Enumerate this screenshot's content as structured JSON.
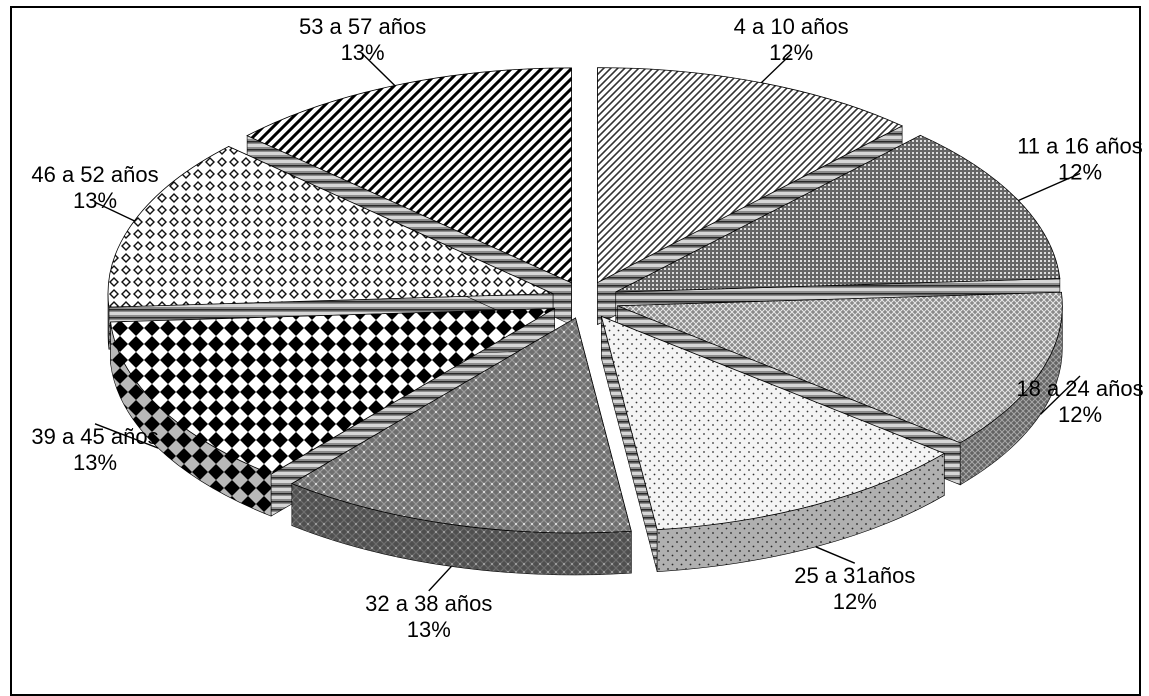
{
  "chart_data": {
    "type": "pie",
    "style": "exploded-3d",
    "title": "",
    "categories": [
      "4 a 10 años",
      "11 a 16 años",
      "18 a 24 años",
      "25 a 31años",
      "32 a 38 años",
      "39 a 45 años",
      "46 a 52 años",
      "53 a 57 años"
    ],
    "values": [
      12,
      12,
      12,
      12,
      13,
      13,
      13,
      13
    ],
    "value_labels": [
      "12%",
      "12%",
      "12%",
      "12%",
      "13%",
      "13%",
      "13%",
      "13%"
    ],
    "legend": "none",
    "grid": false
  },
  "colors": {
    "ink": "#000000",
    "background": "#ffffff",
    "side_grey": "#8c8c8c"
  }
}
